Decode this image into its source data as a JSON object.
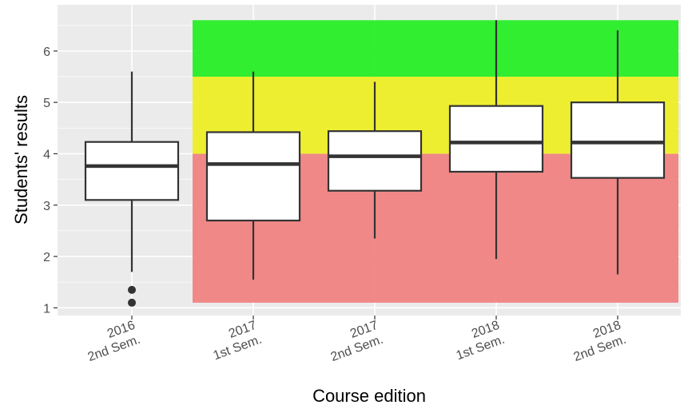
{
  "chart_data": {
    "type": "boxplot",
    "xlabel": "Course edition",
    "ylabel": "Students' results",
    "ylim": [
      0.85,
      6.9
    ],
    "yticks": [
      1,
      2,
      3,
      4,
      5,
      6
    ],
    "grid": true,
    "categories": [
      {
        "line1": "2016",
        "line2": "2nd Sem."
      },
      {
        "line1": "2017",
        "line2": "1st Sem."
      },
      {
        "line1": "2017",
        "line2": "2nd Sem."
      },
      {
        "line1": "2018",
        "line2": "1st Sem."
      },
      {
        "line1": "2018",
        "line2": "2nd Sem."
      }
    ],
    "boxes": [
      {
        "whisker_low": 1.7,
        "q1": 3.1,
        "median": 3.76,
        "q3": 4.23,
        "whisker_high": 5.6,
        "outliers": [
          1.35,
          1.1
        ]
      },
      {
        "whisker_low": 1.55,
        "q1": 2.7,
        "median": 3.8,
        "q3": 4.42,
        "whisker_high": 5.6,
        "outliers": []
      },
      {
        "whisker_low": 2.35,
        "q1": 3.28,
        "median": 3.95,
        "q3": 4.44,
        "whisker_high": 5.4,
        "outliers": []
      },
      {
        "whisker_low": 1.95,
        "q1": 3.65,
        "median": 4.22,
        "q3": 4.93,
        "whisker_high": 6.6,
        "outliers": []
      },
      {
        "whisker_low": 1.65,
        "q1": 3.53,
        "median": 4.22,
        "q3": 5.0,
        "whisker_high": 6.4,
        "outliers": []
      }
    ],
    "bands": [
      {
        "from": 1.1,
        "to": 4.0,
        "color": "#f08080"
      },
      {
        "from": 4.0,
        "to": 5.5,
        "color": "#eeee22"
      },
      {
        "from": 5.5,
        "to": 6.6,
        "color": "#22ee22"
      }
    ],
    "band_x_range": [
      0.5,
      4.5
    ],
    "colors": {
      "panel": "#ebebeb",
      "grid": "#ffffff",
      "box_fill": "#ffffff",
      "box_stroke": "#333333"
    }
  }
}
